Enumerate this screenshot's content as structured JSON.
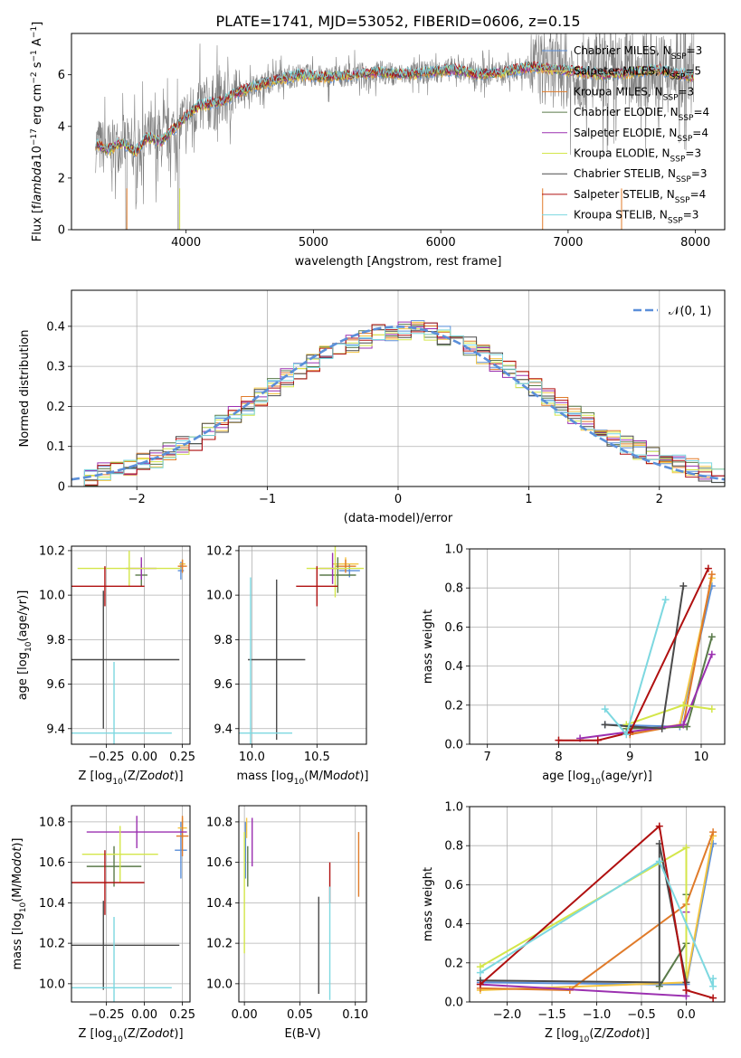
{
  "figure": {
    "title": "PLATE=1741, MJD=53052, FIBERID=0606, z=0.15"
  },
  "series_styles": [
    {
      "name": "Chabrier MILES, N$_{SSP}$=3",
      "color": "#5b8fd9"
    },
    {
      "name": "Salpeter MILES, N$_{SSP}$=5",
      "color": "#f4c542"
    },
    {
      "name": "Kroupa MILES, N$_{SSP}$=3",
      "color": "#e07b2a"
    },
    {
      "name": "Chabrier ELODIE, N$_{SSP}$=4",
      "color": "#5a7a4a"
    },
    {
      "name": "Salpeter ELODIE, N$_{SSP}$=4",
      "color": "#9b30b0"
    },
    {
      "name": "Kroupa ELODIE, N$_{SSP}$=3",
      "color": "#d4e64a"
    },
    {
      "name": "Chabrier STELIB, N$_{SSP}$=3",
      "color": "#4a4a4a"
    },
    {
      "name": "Salpeter STELIB, N$_{SSP}$=4",
      "color": "#b01010"
    },
    {
      "name": "Kroupa STELIB, N$_{SSP}$=3",
      "color": "#7dd8e0"
    }
  ],
  "chart_data": [
    {
      "id": "spectrum",
      "type": "line",
      "xlabel": "wavelength [Angstrom, rest frame]",
      "ylabel": "Flux [f$_\\lambda$10$^{-17}$ erg cm$^{-2}$ s$^{-1}$ A$^{-1}$]",
      "xlim": [
        3100,
        8230
      ],
      "ylim": [
        0,
        7.6
      ],
      "xticks": [
        4000,
        5000,
        6000,
        7000,
        8000
      ],
      "yticks": [
        0,
        2,
        4,
        6
      ],
      "data_color": "#808080",
      "continuum_points": [
        [
          3290,
          3.3
        ],
        [
          3400,
          3.1
        ],
        [
          3500,
          3.4
        ],
        [
          3600,
          3.0
        ],
        [
          3700,
          3.6
        ],
        [
          3800,
          3.4
        ],
        [
          3900,
          3.9
        ],
        [
          4000,
          4.4
        ],
        [
          4100,
          4.8
        ],
        [
          4200,
          4.9
        ],
        [
          4300,
          5.0
        ],
        [
          4400,
          5.3
        ],
        [
          4500,
          5.5
        ],
        [
          4700,
          5.8
        ],
        [
          4900,
          6.0
        ],
        [
          5100,
          5.9
        ],
        [
          5300,
          6.0
        ],
        [
          5500,
          6.1
        ],
        [
          5700,
          6.0
        ],
        [
          5900,
          6.1
        ],
        [
          6100,
          6.2
        ],
        [
          6300,
          6.0
        ],
        [
          6500,
          6.1
        ],
        [
          6700,
          6.3
        ],
        [
          6900,
          6.2
        ],
        [
          7100,
          6.1
        ],
        [
          7300,
          6.0
        ],
        [
          7500,
          6.1
        ],
        [
          7700,
          6.2
        ],
        [
          7900,
          6.0
        ],
        [
          8000,
          5.9
        ]
      ],
      "legend": [
        "Chabrier MILES, N$_{SSP}$=3",
        "Salpeter MILES, N$_{SSP}$=5",
        "Kroupa MILES, N$_{SSP}$=3",
        "Chabrier ELODIE, N$_{SSP}$=4",
        "Salpeter ELODIE, N$_{SSP}$=4",
        "Kroupa ELODIE, N$_{SSP}$=3",
        "Chabrier STELIB, N$_{SSP}$=3",
        "Salpeter STELIB, N$_{SSP}$=4",
        "Kroupa STELIB, N$_{SSP}$=3"
      ],
      "legend_location": "upper right"
    },
    {
      "id": "residuals",
      "type": "histogram",
      "xlabel": "(data-model)/error",
      "ylabel": "Normed distribution",
      "xlim": [
        -2.5,
        2.5
      ],
      "ylim": [
        0,
        0.49
      ],
      "xticks": [
        -2,
        -1,
        0,
        1,
        2
      ],
      "yticks": [
        0.0,
        0.1,
        0.2,
        0.3,
        0.4
      ],
      "bin_edges": [
        -2.5,
        -2.4,
        -2.3,
        -2.2,
        -2.1,
        -2.0,
        -1.9,
        -1.8,
        -1.7,
        -1.6,
        -1.5,
        -1.4,
        -1.3,
        -1.2,
        -1.1,
        -1.0,
        -0.9,
        -0.8,
        -0.7,
        -0.6,
        -0.5,
        -0.4,
        -0.3,
        -0.2,
        -0.1,
        0.0,
        0.1,
        0.2,
        0.3,
        0.4,
        0.5,
        0.6,
        0.7,
        0.8,
        0.9,
        1.0,
        1.1,
        1.2,
        1.3,
        1.4,
        1.5,
        1.6,
        1.7,
        1.8,
        1.9,
        2.0,
        2.1,
        2.2,
        2.3,
        2.4,
        2.5
      ],
      "base_density": [
        0.02,
        0.025,
        0.035,
        0.045,
        0.05,
        0.06,
        0.07,
        0.085,
        0.1,
        0.115,
        0.135,
        0.16,
        0.18,
        0.2,
        0.225,
        0.245,
        0.27,
        0.29,
        0.31,
        0.33,
        0.345,
        0.36,
        0.37,
        0.38,
        0.385,
        0.39,
        0.39,
        0.385,
        0.375,
        0.365,
        0.35,
        0.33,
        0.31,
        0.29,
        0.27,
        0.245,
        0.225,
        0.2,
        0.18,
        0.16,
        0.14,
        0.12,
        0.105,
        0.09,
        0.075,
        0.065,
        0.055,
        0.045,
        0.035,
        0.025
      ],
      "normal_legend": "$\\mathcal{N}(0, 1)$",
      "normal_color": "#5b8fd9"
    },
    {
      "id": "age_vs_Z",
      "type": "errorbar",
      "xlabel": "Z [log$_{10}$(Z/Z$_\\odot$)]",
      "ylabel": "age  [log$_{10}$(age/yr)]",
      "xlim": [
        -0.48,
        0.3
      ],
      "ylim": [
        9.33,
        10.22
      ],
      "xticks": [
        -0.25,
        0.0,
        0.25
      ],
      "xticklabels": [
        "−0.25",
        "0.00",
        "0.25"
      ],
      "yticks": [
        9.4,
        9.6,
        9.8,
        10.0,
        10.2
      ],
      "points": [
        {
          "series": 0,
          "x": 0.24,
          "y": 10.11,
          "xerr": 0.02,
          "yerr": 0.04
        },
        {
          "series": 1,
          "x": 0.25,
          "y": 10.14,
          "xerr": 0.02,
          "yerr": 0.02
        },
        {
          "series": 2,
          "x": 0.25,
          "y": 10.13,
          "xerr": 0.03,
          "yerr": 0.03
        },
        {
          "series": 3,
          "x": -0.02,
          "y": 10.09,
          "xerr": 0.04,
          "yerr": 0.05
        },
        {
          "series": 4,
          "x": -0.02,
          "y": 10.12,
          "xerr": 0.1,
          "yerr": 0.05
        },
        {
          "series": 5,
          "x": -0.1,
          "y": 10.12,
          "xerr": 0.34,
          "yerr": 0.08
        },
        {
          "series": 6,
          "x": -0.27,
          "y": 9.71,
          "xerr": 0.5,
          "yerr": 0.31
        },
        {
          "series": 7,
          "x": -0.26,
          "y": 10.04,
          "xerr": 0.26,
          "yerr": 0.09
        },
        {
          "series": 8,
          "x": -0.2,
          "y": 9.38,
          "xerr": 0.38,
          "yerr": 0.32
        }
      ]
    },
    {
      "id": "age_vs_mass",
      "type": "errorbar",
      "xlabel": "mass [log$_{10}$(M/M$_\\odot$)]",
      "ylabel": "",
      "xlim": [
        9.9,
        10.88
      ],
      "ylim": [
        9.33,
        10.22
      ],
      "xticks": [
        10.0,
        10.5
      ],
      "xticklabels": [
        "10.0",
        "10.5"
      ],
      "yticks": [
        9.4,
        9.6,
        9.8,
        10.0,
        10.2
      ],
      "points": [
        {
          "series": 0,
          "x": 10.75,
          "y": 10.11,
          "xerr": 0.08,
          "yerr": 0.03
        },
        {
          "series": 1,
          "x": 10.72,
          "y": 10.14,
          "xerr": 0.1,
          "yerr": 0.03
        },
        {
          "series": 2,
          "x": 10.72,
          "y": 10.13,
          "xerr": 0.08,
          "yerr": 0.03
        },
        {
          "series": 3,
          "x": 10.66,
          "y": 10.09,
          "xerr": 0.14,
          "yerr": 0.08
        },
        {
          "series": 4,
          "x": 10.62,
          "y": 10.12,
          "xerr": 0.1,
          "yerr": 0.07
        },
        {
          "series": 5,
          "x": 10.64,
          "y": 10.12,
          "xerr": 0.22,
          "yerr": 0.13
        },
        {
          "series": 6,
          "x": 10.19,
          "y": 9.71,
          "xerr": 0.22,
          "yerr": 0.36
        },
        {
          "series": 7,
          "x": 10.5,
          "y": 10.04,
          "xerr": 0.16,
          "yerr": 0.09
        },
        {
          "series": 8,
          "x": 9.99,
          "y": 9.38,
          "xerr": 0.32,
          "yerr": 0.7
        }
      ]
    },
    {
      "id": "massweight_vs_age",
      "type": "line",
      "xlabel": "age  [log$_{10}$(age/yr)]",
      "ylabel": "mass weight",
      "xlim": [
        6.75,
        10.33
      ],
      "ylim": [
        0,
        1
      ],
      "xticks": [
        7,
        8,
        9,
        10
      ],
      "yticks": [
        0.0,
        0.2,
        0.4,
        0.6,
        0.8,
        1.0
      ],
      "yticklabels": [
        "0.0",
        "0.2",
        "0.4",
        "0.6",
        "0.8",
        "1.0"
      ],
      "lines": [
        {
          "series": 0,
          "x": [
            8.65,
            9.7,
            10.15
          ],
          "y": [
            0.1,
            0.09,
            0.81
          ]
        },
        {
          "series": 1,
          "x": [
            9.0,
            9.7,
            10.15
          ],
          "y": [
            0.06,
            0.1,
            0.85
          ]
        },
        {
          "series": 2,
          "x": [
            9.0,
            9.75,
            10.15
          ],
          "y": [
            0.05,
            0.1,
            0.87
          ]
        },
        {
          "series": 3,
          "x": [
            8.95,
            9.8,
            10.15
          ],
          "y": [
            0.08,
            0.09,
            0.55
          ]
        },
        {
          "series": 4,
          "x": [
            8.3,
            9.75,
            10.15
          ],
          "y": [
            0.03,
            0.1,
            0.46
          ]
        },
        {
          "series": 5,
          "x": [
            8.95,
            9.75,
            10.15
          ],
          "y": [
            0.1,
            0.2,
            0.18
          ]
        },
        {
          "series": 6,
          "x": [
            8.65,
            9.45,
            9.75
          ],
          "y": [
            0.1,
            0.08,
            0.81
          ]
        },
        {
          "series": 7,
          "x": [
            8.0,
            8.55,
            9.0,
            10.1
          ],
          "y": [
            0.02,
            0.02,
            0.06,
            0.9
          ]
        },
        {
          "series": 8,
          "x": [
            8.65,
            8.95,
            9.5
          ],
          "y": [
            0.18,
            0.05,
            0.74
          ]
        }
      ]
    },
    {
      "id": "mass_vs_Z",
      "type": "errorbar",
      "xlabel": "Z [log$_{10}$(Z/Z$_\\odot$)]",
      "ylabel": "mass [log$_{10}$(M/M$_\\odot$)]",
      "xlim": [
        -0.48,
        0.3
      ],
      "ylim": [
        9.91,
        10.88
      ],
      "xticks": [
        -0.25,
        0.0,
        0.25
      ],
      "xticklabels": [
        "−0.25",
        "0.00",
        "0.25"
      ],
      "yticks": [
        10.0,
        10.2,
        10.4,
        10.6,
        10.8
      ],
      "points": [
        {
          "series": 0,
          "x": 0.24,
          "y": 10.66,
          "xerr": 0.04,
          "yerr": 0.14
        },
        {
          "series": 1,
          "x": 0.25,
          "y": 10.77,
          "xerr": 0.03,
          "yerr": 0.05
        },
        {
          "series": 2,
          "x": 0.25,
          "y": 10.73,
          "xerr": 0.04,
          "yerr": 0.1
        },
        {
          "series": 3,
          "x": -0.2,
          "y": 10.58,
          "xerr": 0.18,
          "yerr": 0.1
        },
        {
          "series": 4,
          "x": -0.05,
          "y": 10.75,
          "xerr": 0.33,
          "yerr": 0.08
        },
        {
          "series": 5,
          "x": -0.16,
          "y": 10.64,
          "xerr": 0.25,
          "yerr": 0.14
        },
        {
          "series": 6,
          "x": -0.27,
          "y": 10.19,
          "xerr": 0.5,
          "yerr": 0.22
        },
        {
          "series": 7,
          "x": -0.26,
          "y": 10.5,
          "xerr": 0.26,
          "yerr": 0.16
        },
        {
          "series": 8,
          "x": -0.2,
          "y": 9.98,
          "xerr": 0.38,
          "yerr": 0.35
        }
      ]
    },
    {
      "id": "mass_vs_EBV",
      "type": "errorbar",
      "xlabel": "E(B-V)",
      "ylabel": "",
      "xlim": [
        -0.005,
        0.11
      ],
      "ylim": [
        9.91,
        10.88
      ],
      "xticks": [
        0.0,
        0.05,
        0.1
      ],
      "xticklabels": [
        "0.00",
        "0.05",
        "0.10"
      ],
      "yticks": [
        10.0,
        10.2,
        10.4,
        10.6,
        10.8
      ],
      "points": [
        {
          "series": 0,
          "x": 0.001,
          "y": 10.66,
          "xerr": 0,
          "yerr": 0.14
        },
        {
          "series": 1,
          "x": 0.002,
          "y": 10.77,
          "xerr": 0,
          "yerr": 0.05
        },
        {
          "series": 2,
          "x": 0.103,
          "y": 10.59,
          "xerr": 0,
          "yerr": 0.16
        },
        {
          "series": 3,
          "x": 0.003,
          "y": 10.58,
          "xerr": 0,
          "yerr": 0.1
        },
        {
          "series": 4,
          "x": 0.007,
          "y": 10.7,
          "xerr": 0,
          "yerr": 0.12
        },
        {
          "series": 5,
          "x": 0.0,
          "y": 10.45,
          "xerr": 0,
          "yerr": 0.3
        },
        {
          "series": 6,
          "x": 0.067,
          "y": 10.19,
          "xerr": 0,
          "yerr": 0.24
        },
        {
          "series": 7,
          "x": 0.077,
          "y": 10.5,
          "xerr": 0,
          "yerr": 0.1
        },
        {
          "series": 8,
          "x": 0.077,
          "y": 10.2,
          "xerr": 0,
          "yerr": 0.28
        }
      ]
    },
    {
      "id": "massweight_vs_Z",
      "type": "line",
      "xlabel": "Z [log$_{10}$(Z/Z$_\\odot$)]",
      "ylabel": "mass weight",
      "xlim": [
        -2.42,
        0.43
      ],
      "ylim": [
        0,
        1
      ],
      "xticks": [
        -2.0,
        -1.5,
        -1.0,
        -0.5,
        0.0
      ],
      "xticklabels": [
        "−2.0",
        "−1.5",
        "−1.0",
        "−0.5",
        "0.0"
      ],
      "yticks": [
        0.0,
        0.2,
        0.4,
        0.6,
        0.8,
        1.0
      ],
      "yticklabels": [
        "0.0",
        "0.2",
        "0.4",
        "0.6",
        "0.8",
        "1.0"
      ],
      "lines": [
        {
          "series": 0,
          "x": [
            -2.3,
            -0.3,
            0.0,
            0.3
          ],
          "y": [
            0.1,
            0.09,
            0.09,
            0.81
          ]
        },
        {
          "series": 1,
          "x": [
            -2.3,
            0.0,
            0.3
          ],
          "y": [
            0.06,
            0.1,
            0.85
          ]
        },
        {
          "series": 2,
          "x": [
            -2.3,
            -1.3,
            0.0,
            0.3
          ],
          "y": [
            0.07,
            0.06,
            0.5,
            0.87
          ]
        },
        {
          "series": 3,
          "x": [
            -0.3,
            0.0,
            0.0
          ],
          "y": [
            0.08,
            0.3,
            0.55
          ]
        },
        {
          "series": 4,
          "x": [
            -2.3,
            0.0,
            0.0
          ],
          "y": [
            0.09,
            0.03,
            0.46
          ]
        },
        {
          "series": 5,
          "x": [
            -2.3,
            0.0,
            0.0
          ],
          "y": [
            0.18,
            0.79,
            0.1
          ]
        },
        {
          "series": 6,
          "x": [
            -2.3,
            -0.3,
            -0.3,
            0.0
          ],
          "y": [
            0.11,
            0.1,
            0.81,
            0.1
          ]
        },
        {
          "series": 7,
          "x": [
            -2.3,
            -0.3,
            0.0,
            0.3
          ],
          "y": [
            0.09,
            0.9,
            0.06,
            0.02
          ]
        },
        {
          "series": 8,
          "x": [
            -2.3,
            -0.3,
            0.3,
            0.3
          ],
          "y": [
            0.15,
            0.72,
            0.08,
            0.12
          ]
        }
      ]
    }
  ]
}
